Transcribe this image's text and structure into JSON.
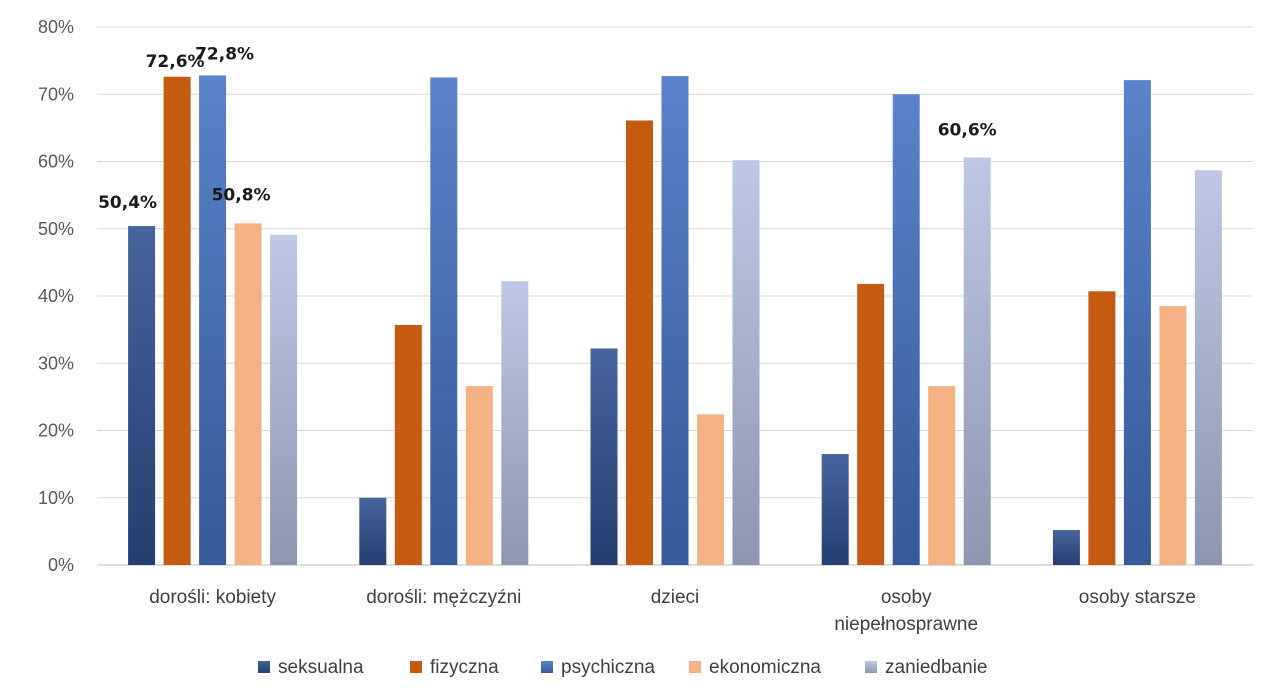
{
  "chart_data": {
    "type": "bar",
    "categories": [
      [
        "dorośli: kobiety"
      ],
      [
        "dorośli: mężczyźni"
      ],
      [
        "dzieci"
      ],
      [
        "osoby",
        "niepełnosprawne"
      ],
      [
        "osoby starsze"
      ]
    ],
    "series": [
      {
        "name": "seksualna",
        "color": "#2f4f8f",
        "values": [
          50.4,
          10.0,
          32.2,
          16.5,
          5.2
        ]
      },
      {
        "name": "fizyczna",
        "color": "#c55a11",
        "values": [
          72.6,
          35.7,
          66.1,
          41.8,
          40.7
        ]
      },
      {
        "name": "psychiczna",
        "color": "#4472c4",
        "values": [
          72.8,
          72.5,
          72.7,
          70.0,
          72.1
        ]
      },
      {
        "name": "ekonomiczna",
        "color": "#f4b183",
        "values": [
          50.8,
          26.6,
          22.4,
          26.6,
          38.5
        ]
      },
      {
        "name": "zaniedbanie",
        "color": "#b4c0e0",
        "values": [
          49.1,
          42.2,
          60.2,
          60.6,
          58.7
        ]
      }
    ],
    "data_labels": [
      {
        "series": 0,
        "category": 0,
        "text": "50,4%"
      },
      {
        "series": 1,
        "category": 0,
        "text": "72,6%"
      },
      {
        "series": 2,
        "category": 0,
        "text": "72,8%"
      },
      {
        "series": 3,
        "category": 0,
        "text": "50,8%"
      },
      {
        "series": 4,
        "category": 3,
        "text": "60,6%"
      }
    ],
    "y_ticks": [
      "0%",
      "10%",
      "20%",
      "30%",
      "40%",
      "50%",
      "60%",
      "70%",
      "80%"
    ],
    "ylim": [
      0,
      80
    ],
    "grid": true,
    "legend_position": "bottom",
    "title": "",
    "xlabel": "",
    "ylabel": ""
  }
}
